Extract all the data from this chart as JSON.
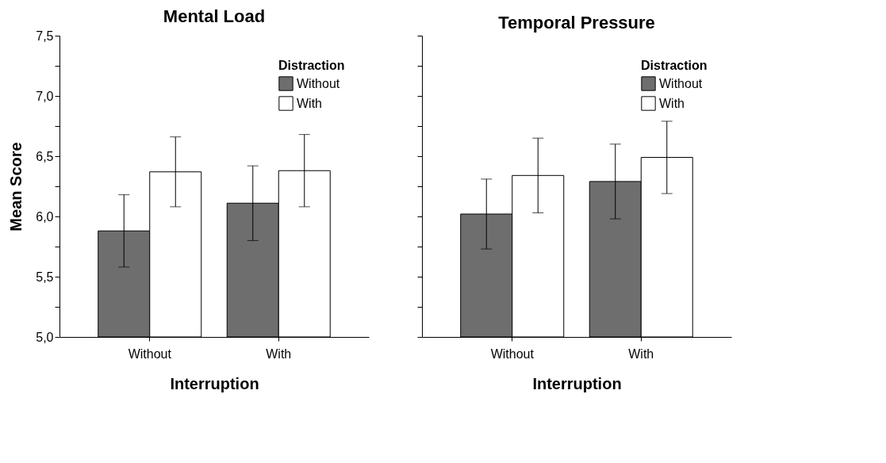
{
  "chart_data": [
    {
      "type": "bar",
      "title": "Mental Load",
      "categories": [
        "Without",
        "With"
      ],
      "xlabel": "Interruption",
      "ylabel": "Mean Score",
      "legend_title": "Distraction",
      "legend": "top right",
      "grid": false,
      "series": [
        {
          "name": "Without",
          "color": "#6e6e6e",
          "values": [
            5.88,
            6.11
          ],
          "errors": [
            0.3,
            0.31
          ]
        },
        {
          "name": "With",
          "color": "#ffffff",
          "values": [
            6.37,
            6.38
          ],
          "errors": [
            0.29,
            0.3
          ]
        }
      ],
      "ylim": [
        5,
        7.5
      ],
      "yticks": [
        {
          "value": 5,
          "label": "5,0"
        },
        {
          "value": 5.25,
          "label": null
        },
        {
          "value": 5.5,
          "label": "5,5"
        },
        {
          "value": 5.75,
          "label": null
        },
        {
          "value": 6,
          "label": "6,0"
        },
        {
          "value": 6.25,
          "label": null
        },
        {
          "value": 6.5,
          "label": "6,5"
        },
        {
          "value": 6.75,
          "label": null
        },
        {
          "value": 7,
          "label": "7,0"
        },
        {
          "value": 7.25,
          "label": null
        },
        {
          "value": 7.5,
          "label": "7,5"
        }
      ]
    },
    {
      "type": "bar",
      "title": "Temporal Pressure",
      "categories": [
        "Without",
        "With"
      ],
      "xlabel": "Interruption",
      "legend_title": "Distraction",
      "legend": "top right",
      "grid": false,
      "tick_labels": "x",
      "series": [
        {
          "name": "Without",
          "color": "#6e6e6e",
          "values": [
            6.02,
            6.29
          ],
          "errors": [
            0.29,
            0.31
          ]
        },
        {
          "name": "With",
          "color": "#ffffff",
          "values": [
            6.34,
            6.49
          ],
          "errors": [
            0.31,
            0.3
          ]
        }
      ],
      "ylim": [
        5,
        7.5
      ],
      "yticks": [
        {
          "value": 5,
          "label": null
        },
        {
          "value": 5.25,
          "label": null
        },
        {
          "value": 5.5,
          "label": null
        },
        {
          "value": 5.75,
          "label": null
        },
        {
          "value": 6,
          "label": null
        },
        {
          "value": 6.25,
          "label": null
        },
        {
          "value": 6.5,
          "label": null
        },
        {
          "value": 6.75,
          "label": null
        },
        {
          "value": 7,
          "label": null
        },
        {
          "value": 7.25,
          "label": null
        },
        {
          "value": 7.5,
          "label": null
        }
      ]
    }
  ]
}
